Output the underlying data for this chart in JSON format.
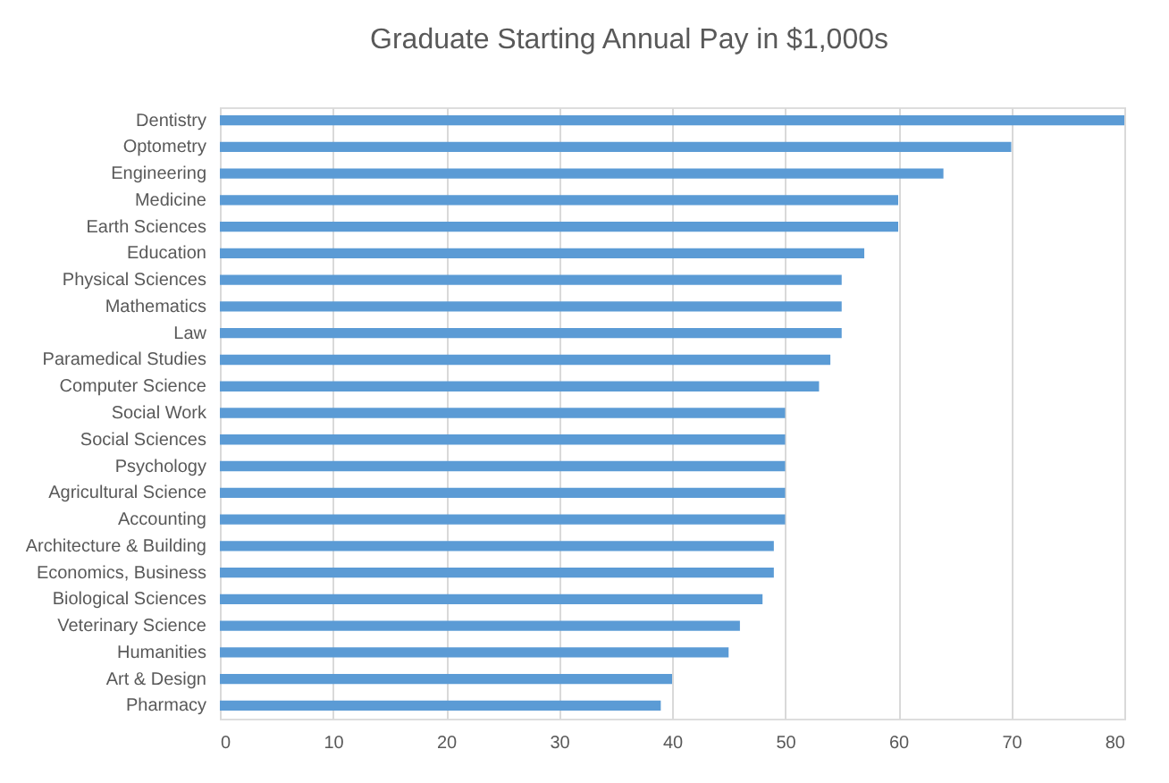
{
  "chart_data": {
    "type": "bar",
    "orientation": "horizontal",
    "title": "Graduate Starting Annual Pay in $1,000s",
    "categories": [
      "Dentistry",
      "Optometry",
      "Engineering",
      "Medicine",
      "Earth Sciences",
      "Education",
      "Physical Sciences",
      "Mathematics",
      "Law",
      "Paramedical Studies",
      "Computer Science",
      "Social Work",
      "Social Sciences",
      "Psychology",
      "Agricultural Science",
      "Accounting",
      "Architecture & Building",
      "Economics, Business",
      "Biological Sciences",
      "Veterinary Science",
      "Humanities",
      "Art & Design",
      "Pharmacy"
    ],
    "values": [
      80,
      70,
      64,
      60,
      60,
      57,
      55,
      55,
      55,
      54,
      53,
      50,
      50,
      50,
      50,
      50,
      49,
      49,
      48,
      46,
      45,
      40,
      39
    ],
    "color": "#5b9bd5",
    "xlim": [
      0,
      80
    ],
    "xticks": [
      0,
      10,
      20,
      30,
      40,
      50,
      60,
      70,
      80
    ],
    "grid": "x"
  }
}
